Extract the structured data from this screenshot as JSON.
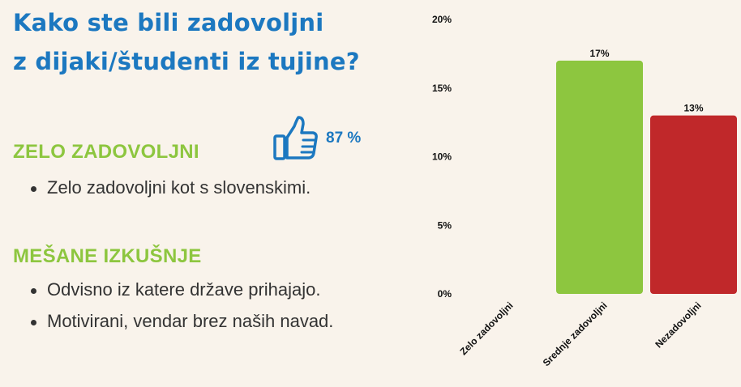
{
  "title_line1": "Kako ste bili zadovoljni",
  "title_line2": "z dijaki/študenti iz tujine?",
  "sections": [
    {
      "heading": "ZELO ZADOVOLJNI",
      "items": [
        "Zelo zadovoljni kot s slovenskimi."
      ]
    },
    {
      "heading": "MEŠANE IZKUŠNJE",
      "items": [
        "Odvisno iz katere države prihajajo.",
        "Motivirani, vendar brez naših navad."
      ]
    }
  ],
  "highlight": {
    "icon": "thumbs-up-icon",
    "value": "87 %"
  },
  "colors": {
    "title": "#1c78c0",
    "heading": "#8dc63f",
    "background": "#f9f3eb"
  },
  "chart_data": {
    "type": "bar",
    "categories": [
      "Zelo zadovoljni",
      "Srednje zadovoljni",
      "Nezadovoljni"
    ],
    "values": [
      0,
      17,
      13
    ],
    "data_labels": [
      "",
      "17%",
      "13%"
    ],
    "colors": [
      "#8dc63f",
      "#8dc63f",
      "#c0282a"
    ],
    "y_ticks": [
      0,
      5,
      10,
      15,
      20
    ],
    "y_tick_labels": [
      "0%",
      "5%",
      "10%",
      "15%",
      "20%"
    ],
    "ylim": [
      0,
      20
    ],
    "grid": false,
    "legend": false
  }
}
